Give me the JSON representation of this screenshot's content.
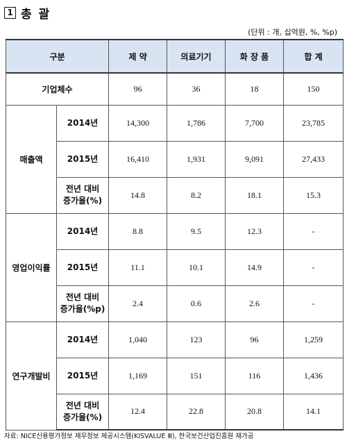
{
  "title": {
    "number": "1",
    "text": "총 괄"
  },
  "unit_note": "(단위 : 개, 십억원, %, %p)",
  "table": {
    "header": {
      "group": "구분",
      "cols": [
        "제    약",
        "의료기기",
        "화 장 품",
        "합    계"
      ]
    },
    "firms": {
      "label": "기업체수",
      "values": [
        "96",
        "36",
        "18",
        "150"
      ]
    },
    "sections": [
      {
        "label": "매출액",
        "rows": [
          {
            "label": "2014년",
            "values": [
              "14,300",
              "1,786",
              "7,700",
              "23,785"
            ]
          },
          {
            "label": "2015년",
            "values": [
              "16,410",
              "1,931",
              "9,091",
              "27,433"
            ]
          },
          {
            "label": "전년 대비\n증가율(%)",
            "values": [
              "14.8",
              "8.2",
              "18.1",
              "15.3"
            ]
          }
        ]
      },
      {
        "label": "영업이익률",
        "rows": [
          {
            "label": "2014년",
            "values": [
              "8.8",
              "9.5",
              "12.3",
              "-"
            ]
          },
          {
            "label": "2015년",
            "values": [
              "11.1",
              "10.1",
              "14.9",
              "-"
            ]
          },
          {
            "label": "전년 대비\n증가율(%p)",
            "values": [
              "2.4",
              "0.6",
              "2.6",
              "-"
            ]
          }
        ]
      },
      {
        "label": "연구개발비",
        "rows": [
          {
            "label": "2014년",
            "values": [
              "1,040",
              "123",
              "96",
              "1,259"
            ]
          },
          {
            "label": "2015년",
            "values": [
              "1,169",
              "151",
              "116",
              "1,436"
            ]
          },
          {
            "label": "전년 대비\n증가율(%)",
            "values": [
              "12.4",
              "22.8",
              "20.8",
              "14.1"
            ]
          }
        ]
      }
    ]
  },
  "source": "자료: NICE신용평가정보 재무정보 제공시스템(KISVALUE Ⅲ), 한국보건산업진흥원 재가공"
}
